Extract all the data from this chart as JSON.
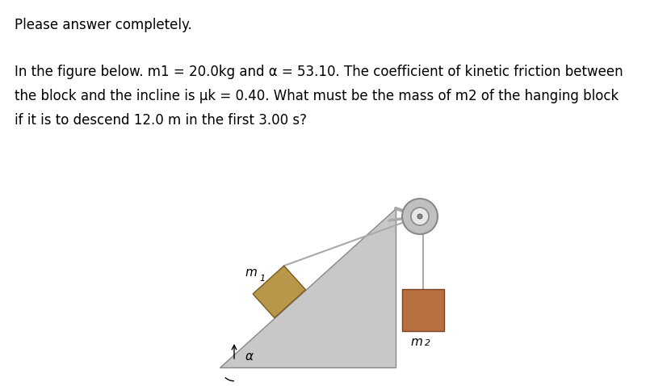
{
  "background_color": "#ffffff",
  "title_text": "Please answer completely.",
  "body_line1": "In the figure below. m1 = 20.0kg and α = 53.10. The coefficient of kinetic friction between",
  "body_line2": "the block and the incline is μk = 0.40. What must be the mass of m2 of the hanging block",
  "body_line3": "if it is to descend 12.0 m in the first 3.00 s?",
  "title_fontsize": 12,
  "body_fontsize": 12,
  "label_m1": "m",
  "label_m1_sub": "1",
  "label_m2": "m",
  "label_m2_sub": "2",
  "label_alpha": "α",
  "incline_color": "#c8c8c8",
  "incline_edge": "#888888",
  "block1_color": "#b8964a",
  "block2_color": "#b87040",
  "pulley_outer_color": "#c0c0c0",
  "pulley_inner_color": "#e8e8e8",
  "pulley_edge": "#888888",
  "rope_color": "#aaaaaa",
  "bracket_color": "#aaaaaa",
  "fig_width": 8.31,
  "fig_height": 4.78,
  "dpi": 100
}
